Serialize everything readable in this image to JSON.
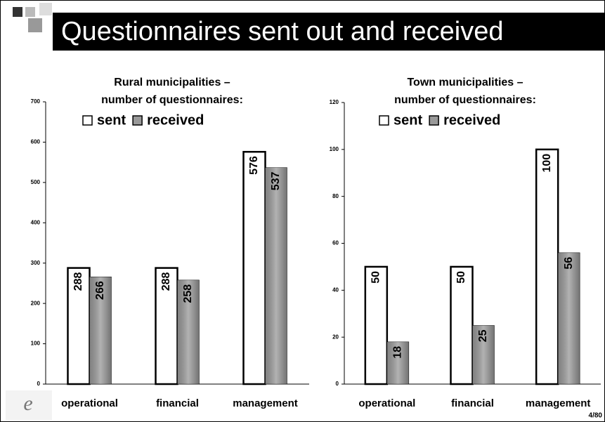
{
  "title": "Questionnaires sent out and received",
  "page_number": "4/80",
  "chart_data": [
    {
      "type": "bar",
      "title": [
        "Rural municipalities –",
        "number of questionnaires:"
      ],
      "categories": [
        "operational",
        "financial",
        "management"
      ],
      "series": [
        {
          "name": "sent",
          "color": "#ffffff",
          "values": [
            288,
            288,
            576
          ]
        },
        {
          "name": "received",
          "color": "#999999",
          "values": [
            266,
            258,
            537
          ]
        }
      ],
      "ylim": [
        0,
        700
      ],
      "yticks": [
        0,
        100,
        200,
        300,
        400,
        500,
        600,
        700
      ]
    },
    {
      "type": "bar",
      "title": [
        "Town municipalities –",
        "number of questionnaires:"
      ],
      "categories": [
        "operational",
        "financial",
        "management"
      ],
      "series": [
        {
          "name": "sent",
          "color": "#ffffff",
          "values": [
            50,
            50,
            100
          ]
        },
        {
          "name": "received",
          "color": "#999999",
          "values": [
            18,
            25,
            56
          ]
        }
      ],
      "ylim": [
        0,
        120
      ],
      "yticks": [
        0,
        20,
        40,
        60,
        80,
        100,
        120
      ]
    }
  ]
}
